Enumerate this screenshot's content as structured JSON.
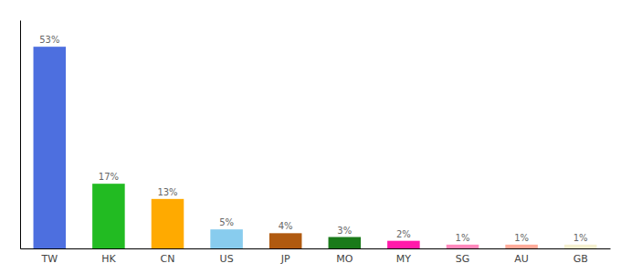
{
  "chart_data": {
    "type": "bar",
    "categories": [
      "TW",
      "HK",
      "CN",
      "US",
      "JP",
      "MO",
      "MY",
      "SG",
      "AU",
      "GB"
    ],
    "values": [
      53,
      17,
      13,
      5,
      4,
      3,
      2,
      1,
      1,
      1
    ],
    "value_labels": [
      "53%",
      "17%",
      "13%",
      "5%",
      "4%",
      "3%",
      "2%",
      "1%",
      "1%",
      "1%"
    ],
    "colors": [
      "#4d6fdf",
      "#22bb22",
      "#ffaa00",
      "#88ccee",
      "#b05a10",
      "#1a7a1a",
      "#ff1aaa",
      "#ff88bb",
      "#ffaa99",
      "#f5f0d0"
    ],
    "ylim": [
      0,
      60
    ],
    "grid": false,
    "data_labels": true,
    "tick_labels": "x"
  }
}
